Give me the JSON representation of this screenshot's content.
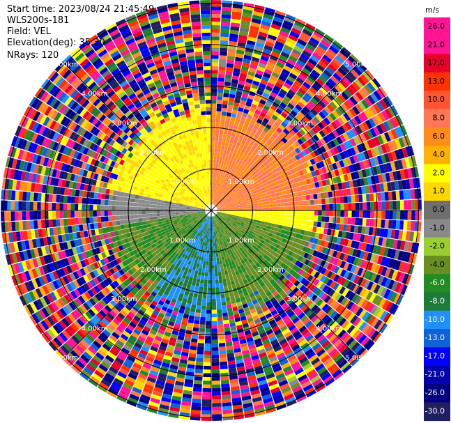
{
  "header": {
    "start_time": "Start time: 2023/08/24 21:45:49",
    "instrument": "WLS200s-181",
    "field": "Field: VEL",
    "elevation": "Elevation(deg): 35.30",
    "nrays": "NRays: 120"
  },
  "colorbar": {
    "unit": "m/s",
    "ticks": [
      "26.0",
      "21.0",
      "17.0",
      "13.0",
      "10.0",
      "8.0",
      "6.0",
      "4.0",
      "2.0",
      "1.0",
      "0.0",
      "-1.0",
      "-2.0",
      "-4.0",
      "-6.0",
      "-8.0",
      "-10.0",
      "-13.0",
      "-17.0",
      "-21.0",
      "-26.0",
      "-30.0"
    ],
    "colors": [
      "#ff1493",
      "#ff1493",
      "#e8002a",
      "#ff3300",
      "#ff5533",
      "#ff7755",
      "#ff8c1a",
      "#ffb000",
      "#ffff00",
      "#ffd700",
      "#6e6e6e",
      "#8a8a8a",
      "#9acd32",
      "#6b8e23",
      "#228b22",
      "#1e7a3a",
      "#1e90ff",
      "#1060d8",
      "#0000ff",
      "#0000b0",
      "#000080",
      "#202060"
    ]
  },
  "rings": {
    "labels": [
      "1.00km",
      "2.00km",
      "3.00km",
      "4.00km",
      "5.00km"
    ]
  },
  "chart_data": {
    "type": "heatmap",
    "projection": "PPI polar (radar scan)",
    "field": "VEL",
    "units": "m/s",
    "instrument": "WLS200s-181",
    "start_time": "2023/08/24 21:45:49",
    "elevation_deg": 35.3,
    "nrays": 120,
    "range_rings_km": [
      1.0,
      2.0,
      3.0,
      4.0,
      5.0
    ],
    "color_range": [
      -30.0,
      26.0
    ],
    "pattern": [
      {
        "sector": "north-east",
        "range_km": [
          0,
          2.5
        ],
        "velocity_ms": [
          6,
          10
        ]
      },
      {
        "sector": "north-west",
        "range_km": [
          0,
          2.5
        ],
        "velocity_ms": [
          1,
          4
        ]
      },
      {
        "sector": "west",
        "range_km": [
          0,
          1.5
        ],
        "velocity_ms": [
          -1,
          0
        ]
      },
      {
        "sector": "south",
        "range_km": [
          0,
          1.5
        ],
        "velocity_ms": [
          -10,
          -6
        ]
      },
      {
        "sector": "south-west",
        "range_km": [
          0,
          2.5
        ],
        "velocity_ms": [
          -6,
          -2
        ]
      },
      {
        "sector": "all",
        "range_km": [
          2.5,
          5.5
        ],
        "velocity_ms": "noise (folded / random)"
      }
    ]
  }
}
